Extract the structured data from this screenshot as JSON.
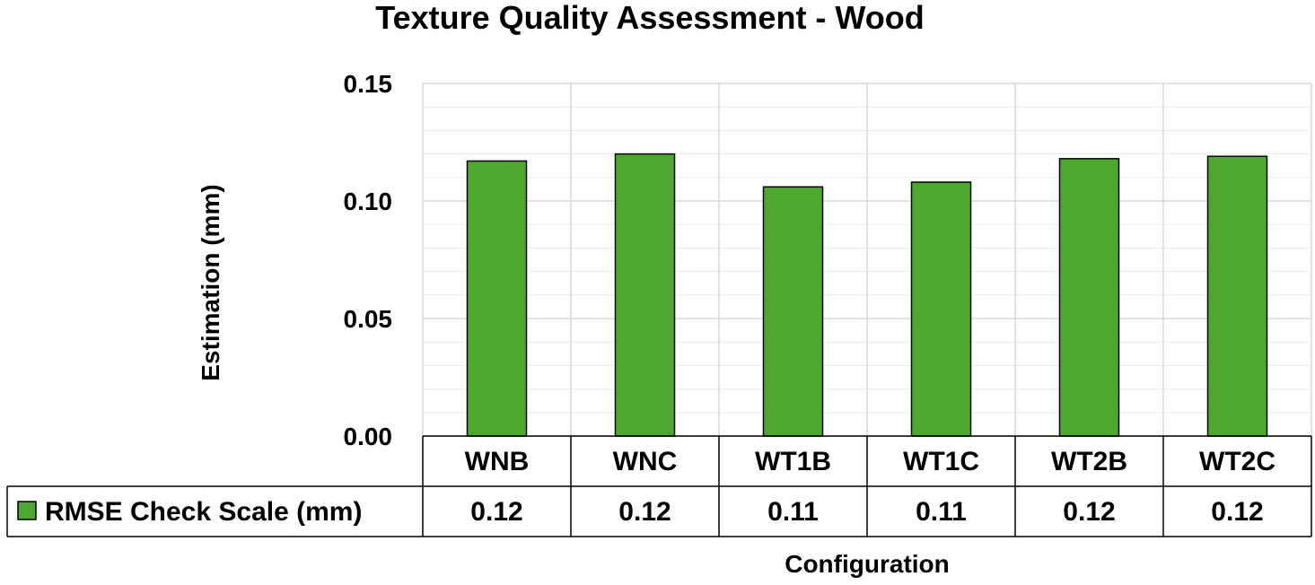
{
  "chart_data": {
    "type": "bar",
    "title": "Texture Quality Assessment - Wood",
    "xlabel": "Configuration",
    "ylabel": "Estimation (mm)",
    "categories": [
      "WNB",
      "WNC",
      "WT1B",
      "WT1C",
      "WT2B",
      "WT2C"
    ],
    "series": [
      {
        "name": "RMSE Check Scale (mm)",
        "values": [
          0.117,
          0.12,
          0.106,
          0.108,
          0.118,
          0.119
        ],
        "table_labels": [
          "0.12",
          "0.12",
          "0.11",
          "0.11",
          "0.12",
          "0.12"
        ],
        "color": "#4ea72e"
      }
    ],
    "ylim": [
      0,
      0.15
    ],
    "yticks": [
      "0.00",
      "0.05",
      "0.10",
      "0.15"
    ],
    "grid": true,
    "data_table": true,
    "legend": "data-table-left"
  }
}
